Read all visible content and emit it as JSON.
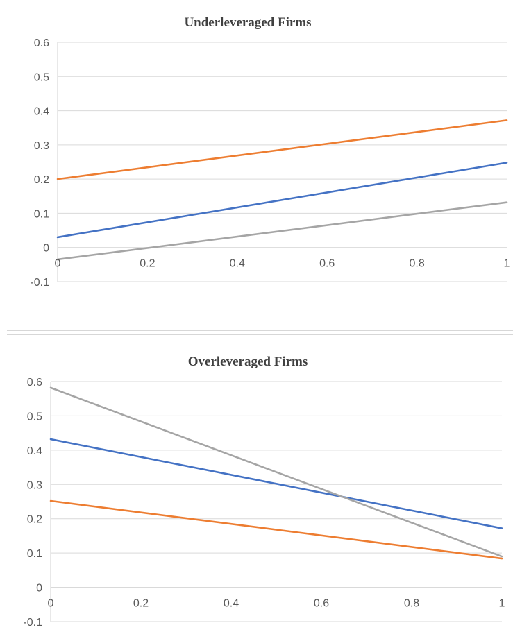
{
  "chart_data": [
    {
      "type": "line",
      "title": "Underleveraged Firms",
      "xlabel": "",
      "ylabel": "",
      "xlim": [
        0,
        1
      ],
      "ylim": [
        -0.1,
        0.6
      ],
      "x_ticks": [
        "0",
        "0.2",
        "0.4",
        "0.6",
        "0.8",
        "1"
      ],
      "y_ticks": [
        "0.6",
        "0.5",
        "0.4",
        "0.3",
        "0.2",
        "0.1",
        "0",
        "-0.1"
      ],
      "grid": true,
      "legend": "none",
      "x": [
        0,
        1
      ],
      "series": [
        {
          "color": "#4472c4",
          "values": [
            0.03,
            0.248
          ]
        },
        {
          "color": "#ed7d31",
          "values": [
            0.2,
            0.372
          ]
        },
        {
          "color": "#a5a5a5",
          "values": [
            -0.035,
            0.132
          ]
        }
      ]
    },
    {
      "type": "line",
      "title": "Overleveraged Firms",
      "xlabel": "",
      "ylabel": "",
      "xlim": [
        0,
        1
      ],
      "ylim": [
        -0.1,
        0.6
      ],
      "x_ticks": [
        "0",
        "0.2",
        "0.4",
        "0.6",
        "0.8",
        "1"
      ],
      "y_ticks": [
        "0.6",
        "0.5",
        "0.4",
        "0.3",
        "0.2",
        "0.1",
        "0",
        "-0.1"
      ],
      "grid": true,
      "legend": "none",
      "x": [
        0,
        1
      ],
      "series": [
        {
          "color": "#4472c4",
          "values": [
            0.432,
            0.172
          ]
        },
        {
          "color": "#ed7d31",
          "values": [
            0.252,
            0.084
          ]
        },
        {
          "color": "#a5a5a5",
          "values": [
            0.582,
            0.09
          ]
        }
      ]
    }
  ]
}
